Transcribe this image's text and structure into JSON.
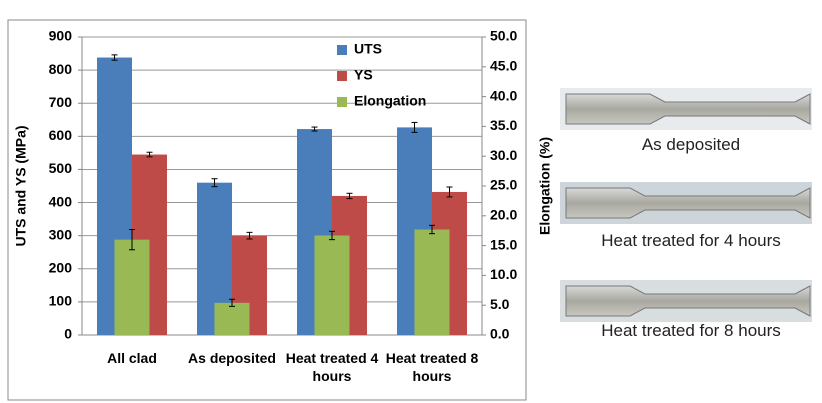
{
  "chart_data": {
    "type": "bar",
    "y_label": "UTS and YS (MPa)",
    "y2_label": "Elongation (%)",
    "categories": [
      "All clad",
      "As deposited",
      "Heat treated 4 hours",
      "Heat treated 8 hours"
    ],
    "series": [
      {
        "name": "UTS",
        "color": "#4a7ebb",
        "values": [
          838,
          460,
          622,
          627
        ],
        "errors": [
          8,
          12,
          6,
          15
        ]
      },
      {
        "name": "YS",
        "color": "#be4b48",
        "values": [
          545,
          300,
          420,
          432
        ],
        "errors": [
          7,
          10,
          8,
          15
        ]
      },
      {
        "name": "Elongation",
        "color": "#98b954",
        "axis": "y2",
        "values": [
          16.0,
          5.4,
          16.7,
          17.7
        ],
        "errors": [
          1.7,
          0.6,
          0.7,
          0.7
        ]
      }
    ],
    "ylim": [
      0,
      900
    ],
    "yticks": [
      0,
      100,
      200,
      300,
      400,
      500,
      600,
      700,
      800,
      900
    ],
    "y2lim": [
      0,
      50
    ],
    "y2ticks": [
      {
        "value": 0,
        "label": "0.0"
      },
      {
        "value": 5,
        "label": "5.0"
      },
      {
        "value": 10,
        "label": "10.0"
      },
      {
        "value": 15,
        "label": "15.0"
      },
      {
        "value": 20,
        "label": "20.0"
      },
      {
        "value": 25,
        "label": "25.0"
      },
      {
        "value": 30,
        "label": "30.0"
      },
      {
        "value": 35,
        "label": "35.0"
      },
      {
        "value": 40,
        "label": "40.0"
      },
      {
        "value": 45,
        "label": "45.0"
      },
      {
        "value": 50,
        "label": "50.0"
      }
    ],
    "grid": true,
    "legend": "top-right"
  },
  "specimens": {
    "captions": [
      "As deposited",
      "Heat treated for 4 hours",
      "Heat treated for 8 hours"
    ]
  }
}
